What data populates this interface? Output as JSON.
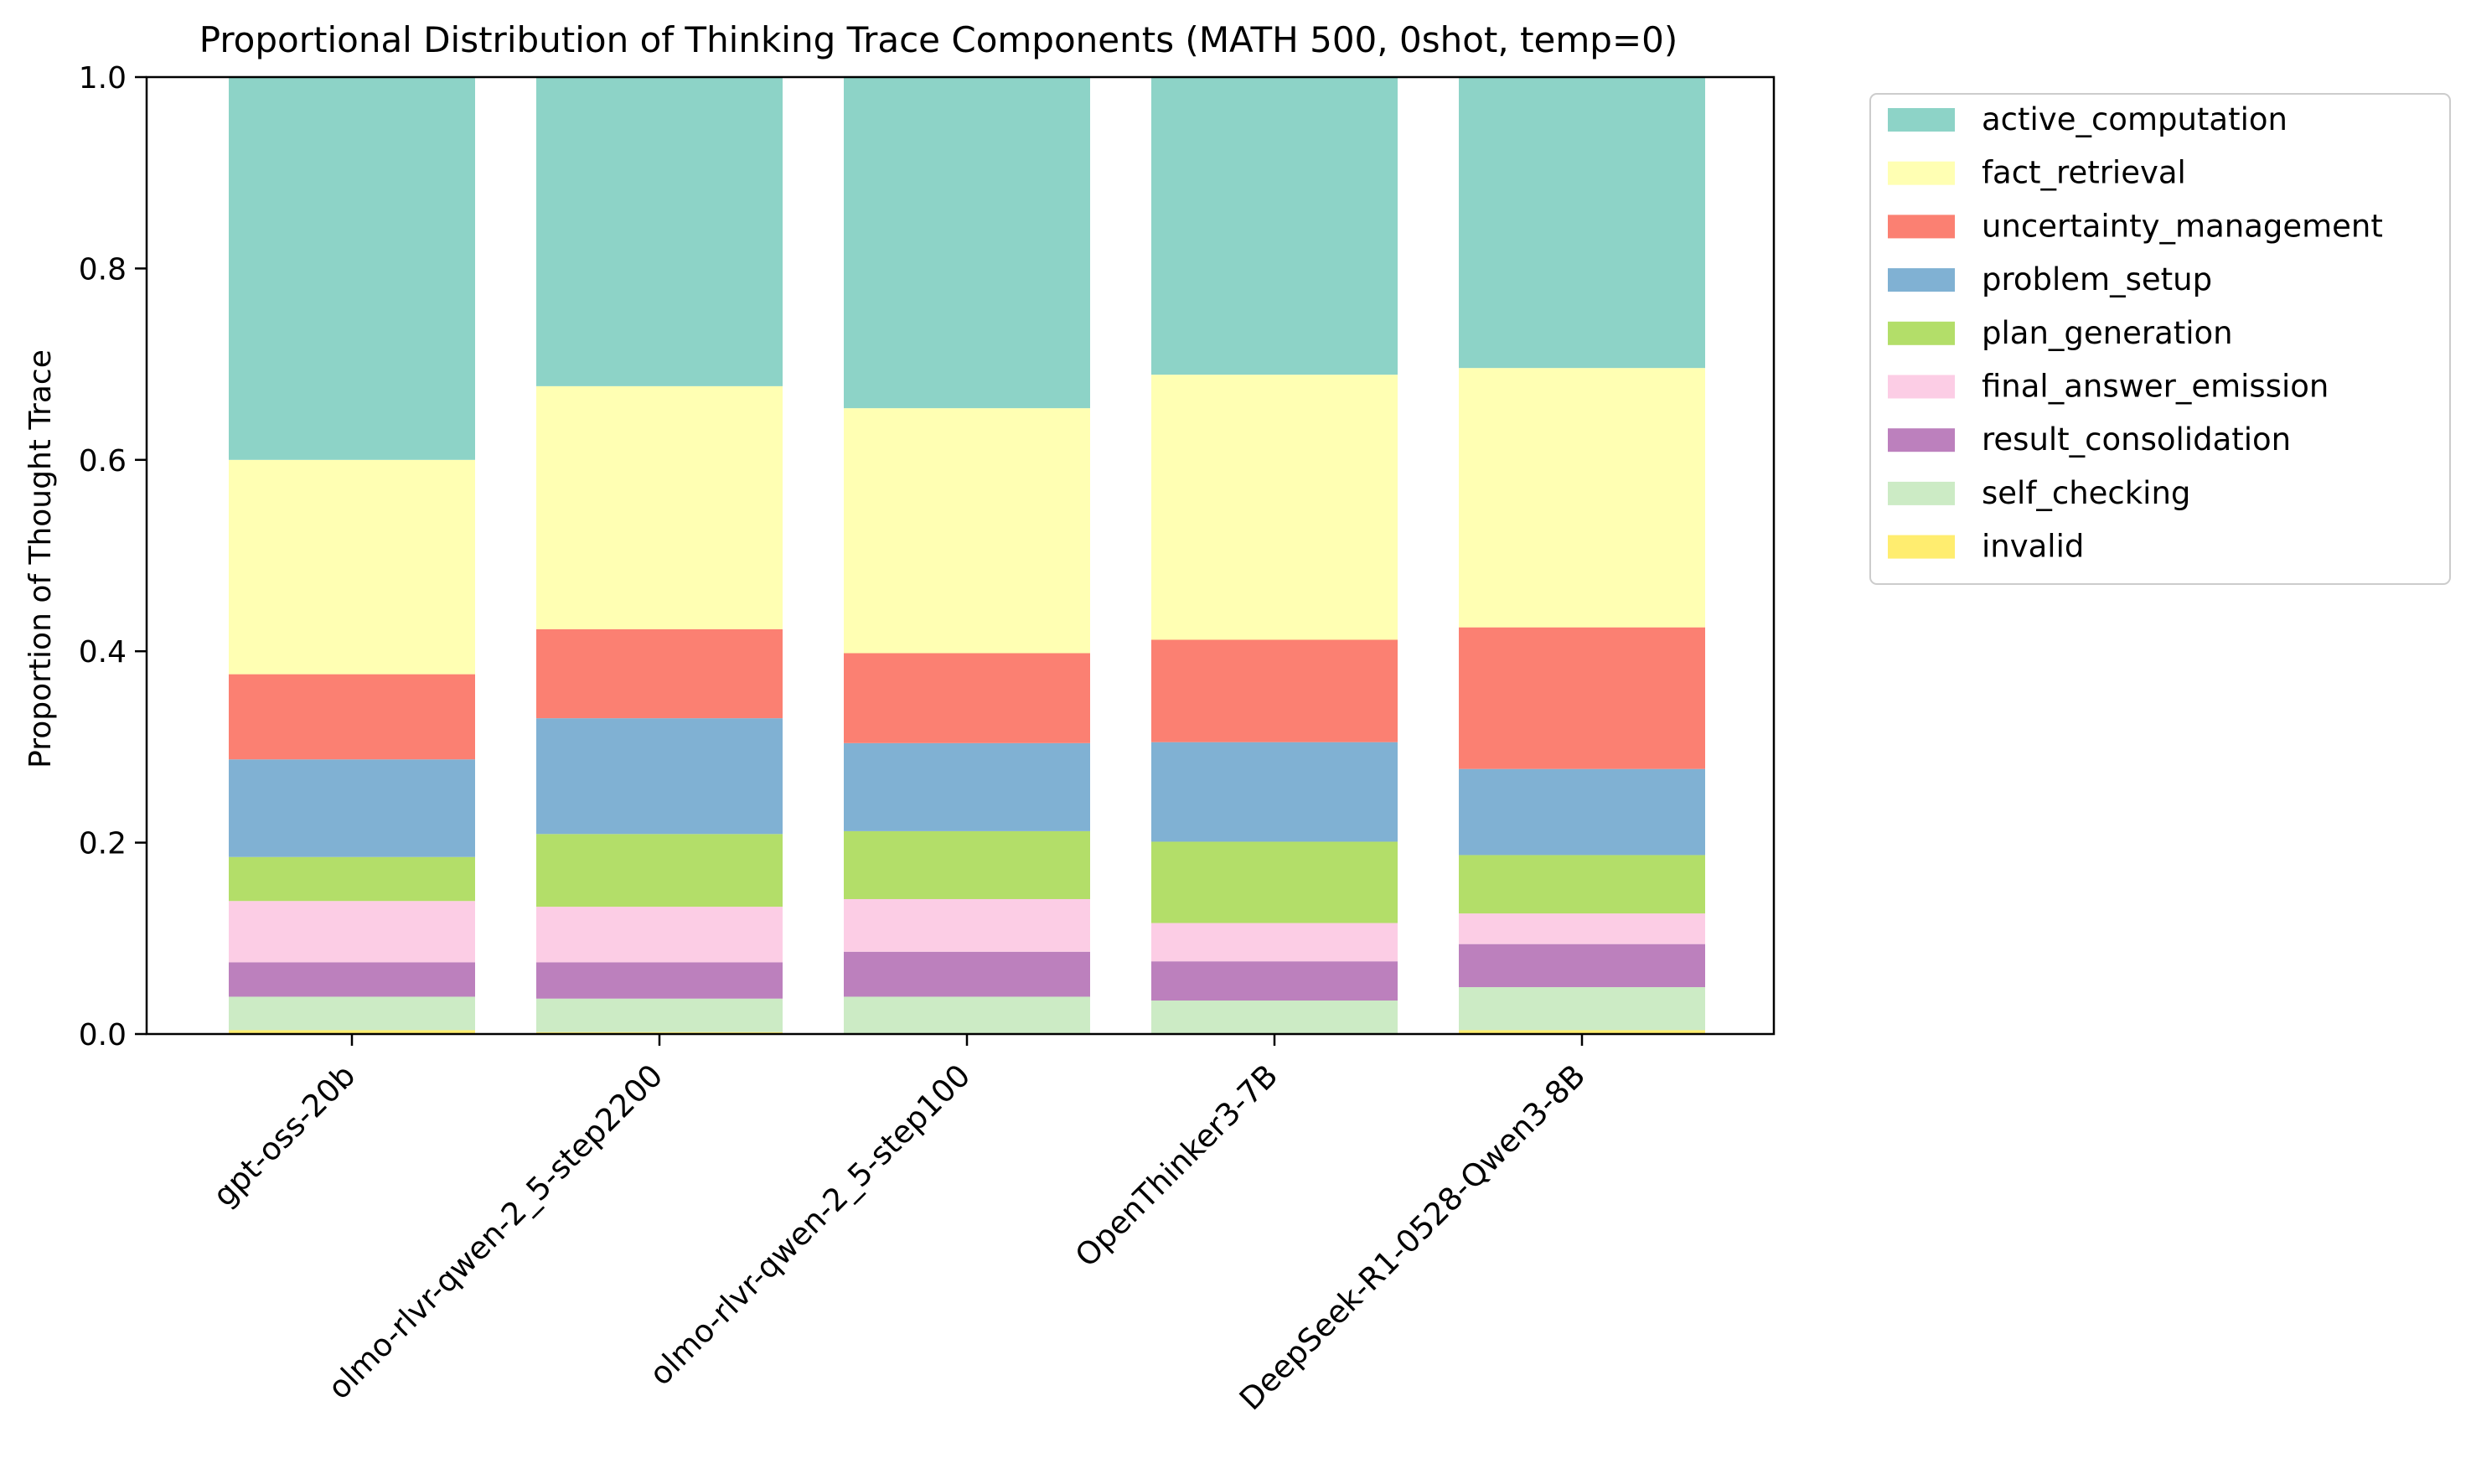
{
  "chart_data": {
    "type": "bar",
    "stacked": true,
    "title": "Proportional Distribution of Thinking Trace Components (MATH 500, 0shot, temp=0)",
    "xlabel": "",
    "ylabel": "Proportion of Thought Trace",
    "ylim": [
      0,
      1.0
    ],
    "yticks": [
      "0.0",
      "0.2",
      "0.4",
      "0.6",
      "0.8",
      "1.0"
    ],
    "grid": false,
    "legend_position": "outside-right-top",
    "categories": [
      "gpt-oss-20b",
      "olmo-rlvr-qwen-2_5-step2200",
      "olmo-rlvr-qwen-2_5-step100",
      "OpenThinker3-7B",
      "DeepSeek-R1-0528-Qwen3-8B"
    ],
    "series": [
      {
        "name": "invalid",
        "color": "#ffed6f",
        "values": [
          0.004,
          0.002,
          0.001,
          0.001,
          0.004
        ]
      },
      {
        "name": "self_checking",
        "color": "#ccebc5",
        "values": [
          0.035,
          0.035,
          0.038,
          0.034,
          0.045
        ]
      },
      {
        "name": "result_consolidation",
        "color": "#bc80bd",
        "values": [
          0.036,
          0.038,
          0.047,
          0.041,
          0.045
        ]
      },
      {
        "name": "final_answer_emission",
        "color": "#fccde5",
        "values": [
          0.064,
          0.058,
          0.055,
          0.04,
          0.032
        ]
      },
      {
        "name": "plan_generation",
        "color": "#b3de69",
        "values": [
          0.046,
          0.076,
          0.071,
          0.085,
          0.061
        ]
      },
      {
        "name": "problem_setup",
        "color": "#80b1d3",
        "values": [
          0.102,
          0.121,
          0.092,
          0.104,
          0.09
        ]
      },
      {
        "name": "uncertainty_management",
        "color": "#fb8072",
        "values": [
          0.089,
          0.093,
          0.094,
          0.107,
          0.148
        ]
      },
      {
        "name": "fact_retrieval",
        "color": "#ffffb3",
        "values": [
          0.224,
          0.254,
          0.256,
          0.277,
          0.271
        ]
      },
      {
        "name": "active_computation",
        "color": "#8dd3c7",
        "values": [
          0.4,
          0.323,
          0.346,
          0.311,
          0.304
        ]
      }
    ],
    "legend_order": [
      "active_computation",
      "fact_retrieval",
      "uncertainty_management",
      "problem_setup",
      "plan_generation",
      "final_answer_emission",
      "result_consolidation",
      "self_checking",
      "invalid"
    ]
  }
}
